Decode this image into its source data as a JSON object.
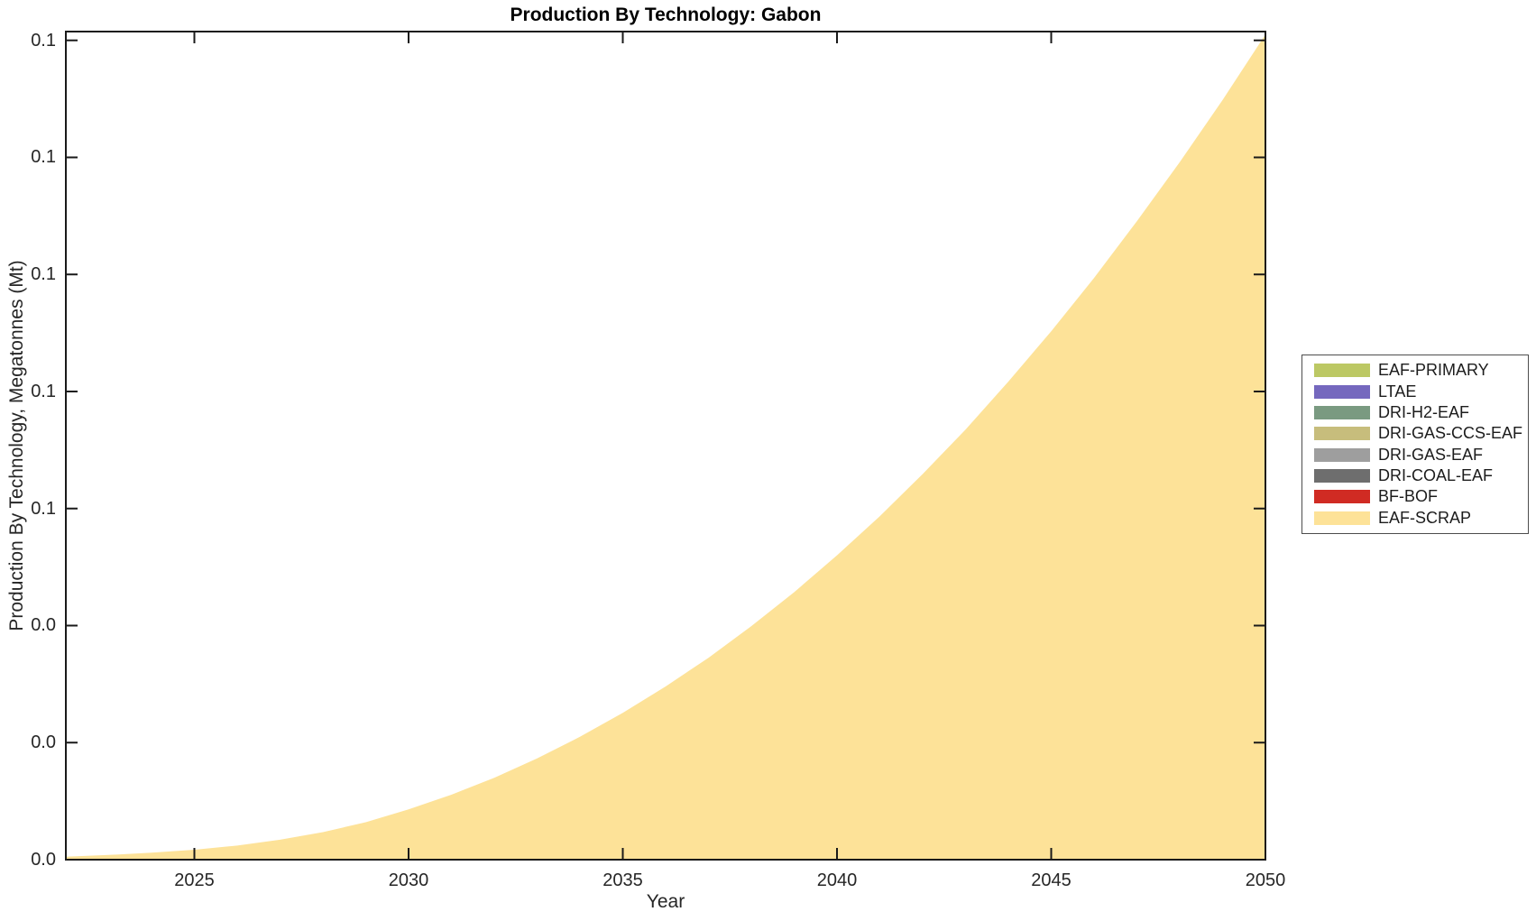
{
  "figure": {
    "title": "Production By Technology: Gabon",
    "xlabel": "Year",
    "ylabel": "Production By Technology, Megatonnes (Mt)"
  },
  "legend": {
    "items": [
      {
        "label": "EAF-PRIMARY",
        "color": "#bcc864"
      },
      {
        "label": "LTAE",
        "color": "#7568be"
      },
      {
        "label": "DRI-H2-EAF",
        "color": "#7a9a81"
      },
      {
        "label": "DRI-GAS-CCS-EAF",
        "color": "#c7bd7c"
      },
      {
        "label": "DRI-GAS-EAF",
        "color": "#9e9e9e"
      },
      {
        "label": "DRI-COAL-EAF",
        "color": "#6e6e6e"
      },
      {
        "label": "BF-BOF",
        "color": "#d02b23"
      },
      {
        "label": "EAF-SCRAP",
        "color": "#fde298"
      }
    ]
  },
  "chart_data": {
    "type": "area",
    "stacked": true,
    "title": "Production By Technology: Gabon",
    "xlabel": "Year",
    "ylabel": "Production By Technology, Megatonnes (Mt)",
    "xlim": [
      2022,
      2050
    ],
    "ylim": [
      0,
      0.1415
    ],
    "grid": false,
    "legend_position": "right-outside",
    "x_ticks": [
      2025,
      2030,
      2035,
      2040,
      2045,
      2050
    ],
    "x_tick_labels": [
      "2025",
      "2030",
      "2035",
      "2040",
      "2045",
      "2050"
    ],
    "y_ticks": [
      0,
      0.02,
      0.04,
      0.06,
      0.08,
      0.1,
      0.12,
      0.14
    ],
    "y_tick_labels": [
      "0.0",
      "0.0",
      "0.0",
      "0.1",
      "0.1",
      "0.1",
      "0.1",
      "0.1"
    ],
    "x": [
      2022,
      2023,
      2024,
      2025,
      2026,
      2027,
      2028,
      2029,
      2030,
      2031,
      2032,
      2033,
      2034,
      2035,
      2036,
      2037,
      2038,
      2039,
      2040,
      2041,
      2042,
      2043,
      2044,
      2045,
      2046,
      2047,
      2048,
      2049,
      2050
    ],
    "series": [
      {
        "name": "EAF-PRIMARY",
        "color": "#bcc864",
        "values": [
          0,
          0,
          0,
          0,
          0,
          0,
          0,
          0,
          0,
          0,
          0,
          0,
          0,
          0,
          0,
          0,
          0,
          0,
          0,
          0,
          0,
          0,
          0,
          0,
          0,
          0,
          0,
          0,
          0
        ]
      },
      {
        "name": "LTAE",
        "color": "#7568be",
        "values": [
          0,
          0,
          0,
          0,
          0,
          0,
          0,
          0,
          0,
          0,
          0,
          0,
          0,
          0,
          0,
          0,
          0,
          0,
          0,
          0,
          0,
          0,
          0,
          0,
          0,
          0,
          0,
          0,
          0
        ]
      },
      {
        "name": "DRI-H2-EAF",
        "color": "#7a9a81",
        "values": [
          0,
          0,
          0,
          0,
          0,
          0,
          0,
          0,
          0,
          0,
          0,
          0,
          0,
          0,
          0,
          0,
          0,
          0,
          0,
          0,
          0,
          0,
          0,
          0,
          0,
          0,
          0,
          0,
          0
        ]
      },
      {
        "name": "DRI-GAS-CCS-EAF",
        "color": "#c7bd7c",
        "values": [
          0,
          0,
          0,
          0,
          0,
          0,
          0,
          0,
          0,
          0,
          0,
          0,
          0,
          0,
          0,
          0,
          0,
          0,
          0,
          0,
          0,
          0,
          0,
          0,
          0,
          0,
          0,
          0,
          0
        ]
      },
      {
        "name": "DRI-GAS-EAF",
        "color": "#9e9e9e",
        "values": [
          0,
          0,
          0,
          0,
          0,
          0,
          0,
          0,
          0,
          0,
          0,
          0,
          0,
          0,
          0,
          0,
          0,
          0,
          0,
          0,
          0,
          0,
          0,
          0,
          0,
          0,
          0,
          0,
          0
        ]
      },
      {
        "name": "DRI-COAL-EAF",
        "color": "#6e6e6e",
        "values": [
          0,
          0,
          0,
          0,
          0,
          0,
          0,
          0,
          0,
          0,
          0,
          0,
          0,
          0,
          0,
          0,
          0,
          0,
          0,
          0,
          0,
          0,
          0,
          0,
          0,
          0,
          0,
          0,
          0
        ]
      },
      {
        "name": "BF-BOF",
        "color": "#d02b23",
        "values": [
          0,
          0,
          0,
          0,
          0,
          0,
          0,
          0,
          0,
          0,
          0,
          0,
          0,
          0,
          0,
          0,
          0,
          0,
          0,
          0,
          0,
          0,
          0,
          0,
          0,
          0,
          0,
          0,
          0
        ]
      },
      {
        "name": "EAF-SCRAP",
        "color": "#fde298",
        "values": [
          0.0005,
          0.0008,
          0.0012,
          0.0017,
          0.0024,
          0.0034,
          0.0047,
          0.0064,
          0.0086,
          0.0111,
          0.014,
          0.0173,
          0.021,
          0.0251,
          0.0296,
          0.0345,
          0.0399,
          0.0457,
          0.052,
          0.0587,
          0.0659,
          0.0735,
          0.0817,
          0.0903,
          0.0994,
          0.1091,
          0.1192,
          0.1298,
          0.141
        ]
      }
    ]
  }
}
